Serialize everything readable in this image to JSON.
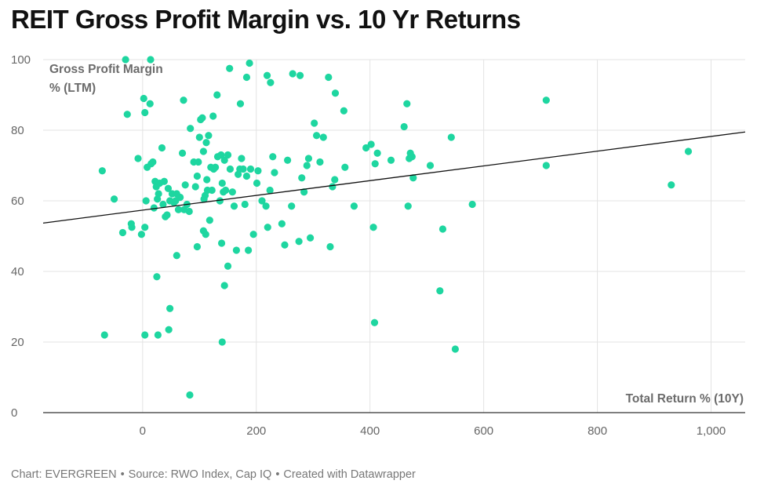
{
  "title": "REIT Gross Profit Margin vs. 10 Yr Returns",
  "footer": {
    "chart_credit": "Chart: EVERGREEN",
    "source": "Source: RWO Index, Cap IQ",
    "created_with": "Created with Datawrapper",
    "separator": "•"
  },
  "colors": {
    "point": "#1ed6a0",
    "trend_line": "#111111",
    "grid": "#e3e3e3",
    "axis": "#333333"
  },
  "chart_data": {
    "type": "scatter",
    "title": "REIT Gross Profit Margin vs. 10 Yr Returns",
    "ylabel_lines": [
      "Gross Profit Margin",
      "% (LTM)"
    ],
    "xlabel": "Total Return % (10Y)",
    "xlim": [
      -175,
      1060
    ],
    "ylim": [
      0,
      100
    ],
    "x_ticks": [
      0,
      200,
      400,
      600,
      800,
      1000
    ],
    "x_tick_labels": [
      "0",
      "200",
      "400",
      "600",
      "800",
      "1,000"
    ],
    "y_ticks": [
      0,
      20,
      40,
      60,
      80,
      100
    ],
    "y_tick_labels": [
      "0",
      "20",
      "40",
      "60",
      "80",
      "100"
    ],
    "grid": true,
    "trend_line": {
      "x": [
        -175,
        1060
      ],
      "y": [
        53.7,
        79.5
      ]
    },
    "points": [
      [
        -30,
        100
      ],
      [
        14,
        100
      ],
      [
        -27,
        84.5
      ],
      [
        2,
        89
      ],
      [
        13,
        87.5
      ],
      [
        4,
        85
      ],
      [
        72,
        88.5
      ],
      [
        131,
        90
      ],
      [
        153,
        97.5
      ],
      [
        188,
        99
      ],
      [
        172,
        87.5
      ],
      [
        183,
        95
      ],
      [
        219,
        95.5
      ],
      [
        225,
        93.5
      ],
      [
        264,
        96
      ],
      [
        277,
        95.5
      ],
      [
        327,
        95
      ],
      [
        339,
        90.5
      ],
      [
        354,
        85.5
      ],
      [
        465,
        87.5
      ],
      [
        710,
        88.5
      ],
      [
        -71,
        68.5
      ],
      [
        -50,
        60.5
      ],
      [
        -35,
        51
      ],
      [
        -20,
        53.5
      ],
      [
        -19,
        52.5
      ],
      [
        -8,
        72
      ],
      [
        -2,
        50.5
      ],
      [
        4,
        52.5
      ],
      [
        6,
        60
      ],
      [
        8,
        69.5
      ],
      [
        15,
        70.5
      ],
      [
        18,
        71
      ],
      [
        20,
        58
      ],
      [
        22,
        65.5
      ],
      [
        24,
        64
      ],
      [
        26,
        60.5
      ],
      [
        28,
        62
      ],
      [
        30,
        65
      ],
      [
        34,
        75
      ],
      [
        36,
        59
      ],
      [
        38,
        65.5
      ],
      [
        40,
        55.5
      ],
      [
        43,
        56
      ],
      [
        45,
        63.5
      ],
      [
        48,
        60
      ],
      [
        52,
        62
      ],
      [
        55,
        59.5
      ],
      [
        58,
        60
      ],
      [
        60,
        62
      ],
      [
        63,
        57.5
      ],
      [
        66,
        61
      ],
      [
        70,
        73.5
      ],
      [
        73,
        57.5
      ],
      [
        75,
        64.5
      ],
      [
        78,
        59
      ],
      [
        82,
        57
      ],
      [
        84,
        80.5
      ],
      [
        90,
        71
      ],
      [
        93,
        64
      ],
      [
        96,
        67
      ],
      [
        98,
        71
      ],
      [
        100,
        78
      ],
      [
        102,
        83
      ],
      [
        105,
        83.5
      ],
      [
        107,
        74
      ],
      [
        108,
        60.5
      ],
      [
        110,
        61.5
      ],
      [
        112,
        76.5
      ],
      [
        113,
        66
      ],
      [
        114,
        63
      ],
      [
        116,
        78.5
      ],
      [
        118,
        54.5
      ],
      [
        120,
        69.5
      ],
      [
        122,
        63
      ],
      [
        124,
        84
      ],
      [
        125,
        69
      ],
      [
        128,
        69.5
      ],
      [
        132,
        72.5
      ],
      [
        136,
        60
      ],
      [
        138,
        73
      ],
      [
        140,
        65
      ],
      [
        142,
        62.5
      ],
      [
        144,
        71.5
      ],
      [
        146,
        63
      ],
      [
        150,
        73
      ],
      [
        154,
        69
      ],
      [
        158,
        62.5
      ],
      [
        161,
        58.5
      ],
      [
        165,
        46
      ],
      [
        168,
        67.5
      ],
      [
        171,
        69
      ],
      [
        174,
        72
      ],
      [
        177,
        69
      ],
      [
        180,
        59
      ],
      [
        183,
        67
      ],
      [
        186,
        46
      ],
      [
        190,
        69
      ],
      [
        195,
        50.5
      ],
      [
        201,
        65
      ],
      [
        203,
        68.5
      ],
      [
        210,
        60
      ],
      [
        217,
        58.5
      ],
      [
        220,
        52.5
      ],
      [
        224,
        63
      ],
      [
        229,
        72.5
      ],
      [
        232,
        68
      ],
      [
        245,
        53.5
      ],
      [
        250,
        47.5
      ],
      [
        255,
        71.5
      ],
      [
        262,
        58.5
      ],
      [
        275,
        48.5
      ],
      [
        280,
        66.5
      ],
      [
        284,
        62.5
      ],
      [
        289,
        70
      ],
      [
        292,
        72
      ],
      [
        295,
        49.5
      ],
      [
        302,
        82
      ],
      [
        306,
        78.5
      ],
      [
        312,
        71
      ],
      [
        318,
        78
      ],
      [
        330,
        47
      ],
      [
        334,
        64
      ],
      [
        338,
        66
      ],
      [
        356,
        69.5
      ],
      [
        372,
        58.5
      ],
      [
        393,
        75
      ],
      [
        402,
        76
      ],
      [
        406,
        52.5
      ],
      [
        409,
        70.5
      ],
      [
        413,
        73.5
      ],
      [
        437,
        71.5
      ],
      [
        460,
        81
      ],
      [
        467,
        58.5
      ],
      [
        469,
        72
      ],
      [
        471,
        73.5
      ],
      [
        474,
        72.5
      ],
      [
        476,
        66.5
      ],
      [
        506,
        70
      ],
      [
        523,
        34.5
      ],
      [
        528,
        52
      ],
      [
        543,
        78
      ],
      [
        580,
        59
      ],
      [
        710,
        70
      ],
      [
        930,
        64.5
      ],
      [
        960,
        74
      ],
      [
        -67,
        22
      ],
      [
        4,
        22
      ],
      [
        27,
        22
      ],
      [
        25,
        38.5
      ],
      [
        48,
        29.5
      ],
      [
        46,
        23.5
      ],
      [
        60,
        44.5
      ],
      [
        83,
        5
      ],
      [
        96,
        47
      ],
      [
        107,
        51.5
      ],
      [
        111,
        50.5
      ],
      [
        139,
        48
      ],
      [
        140,
        20
      ],
      [
        144,
        36
      ],
      [
        150,
        41.5
      ],
      [
        408,
        25.5
      ],
      [
        550,
        18
      ]
    ]
  }
}
